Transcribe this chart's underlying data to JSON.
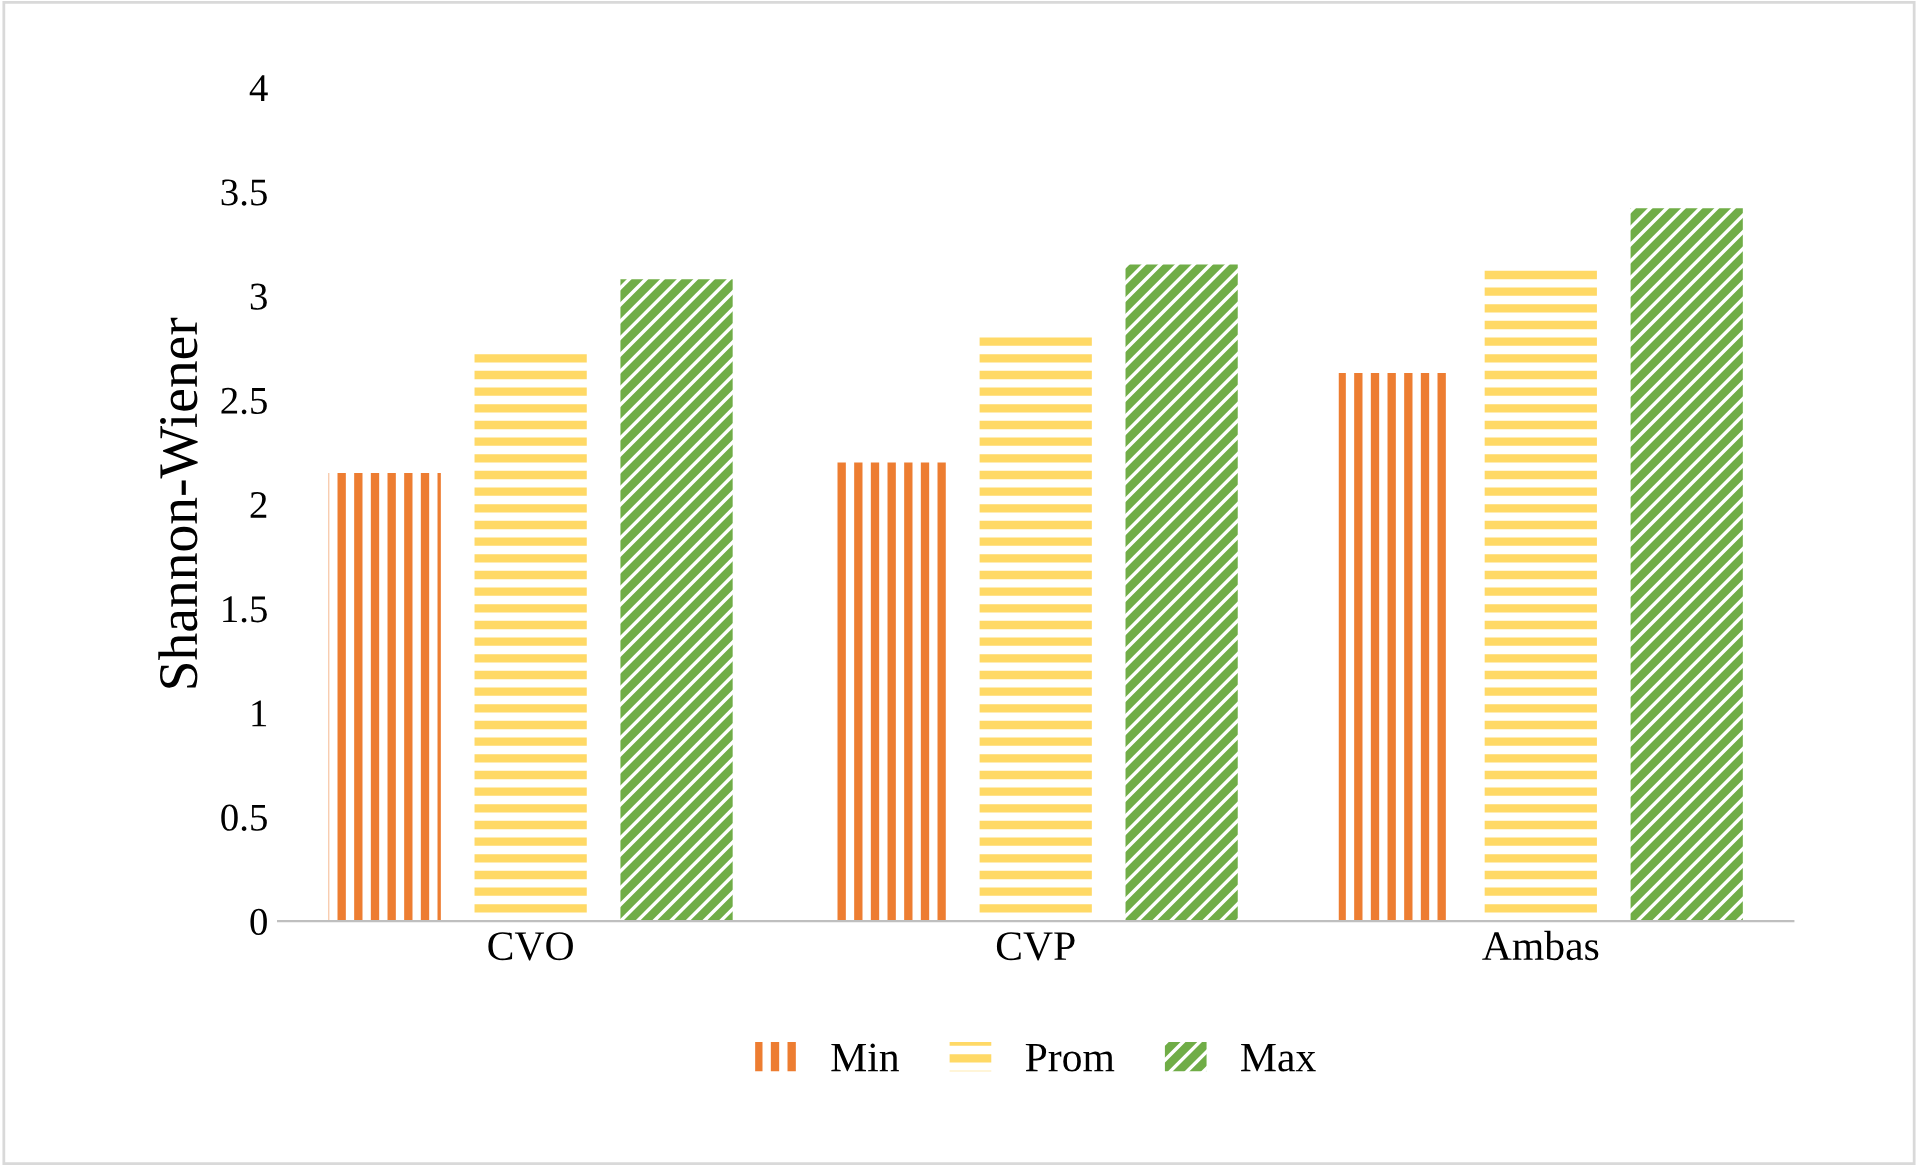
{
  "chart_data": {
    "type": "bar",
    "ylabel": "Shannon-Wiener",
    "categories": [
      "CVO",
      "CVP",
      "Ambas"
    ],
    "series": [
      {
        "name": "Min",
        "color": "#ed7d31",
        "values": [
          2.15,
          2.2,
          2.63
        ]
      },
      {
        "name": "Prom",
        "color": "#ffd966",
        "values": [
          2.76,
          2.82,
          3.13
        ]
      },
      {
        "name": "Max",
        "color": "#70ad47",
        "values": [
          3.08,
          3.15,
          3.42
        ]
      }
    ],
    "ylim": [
      0,
      4
    ],
    "yticks": [
      0,
      0.5,
      1,
      1.5,
      2,
      2.5,
      3,
      3.5,
      4
    ],
    "grid": false,
    "legend": "bottom"
  }
}
